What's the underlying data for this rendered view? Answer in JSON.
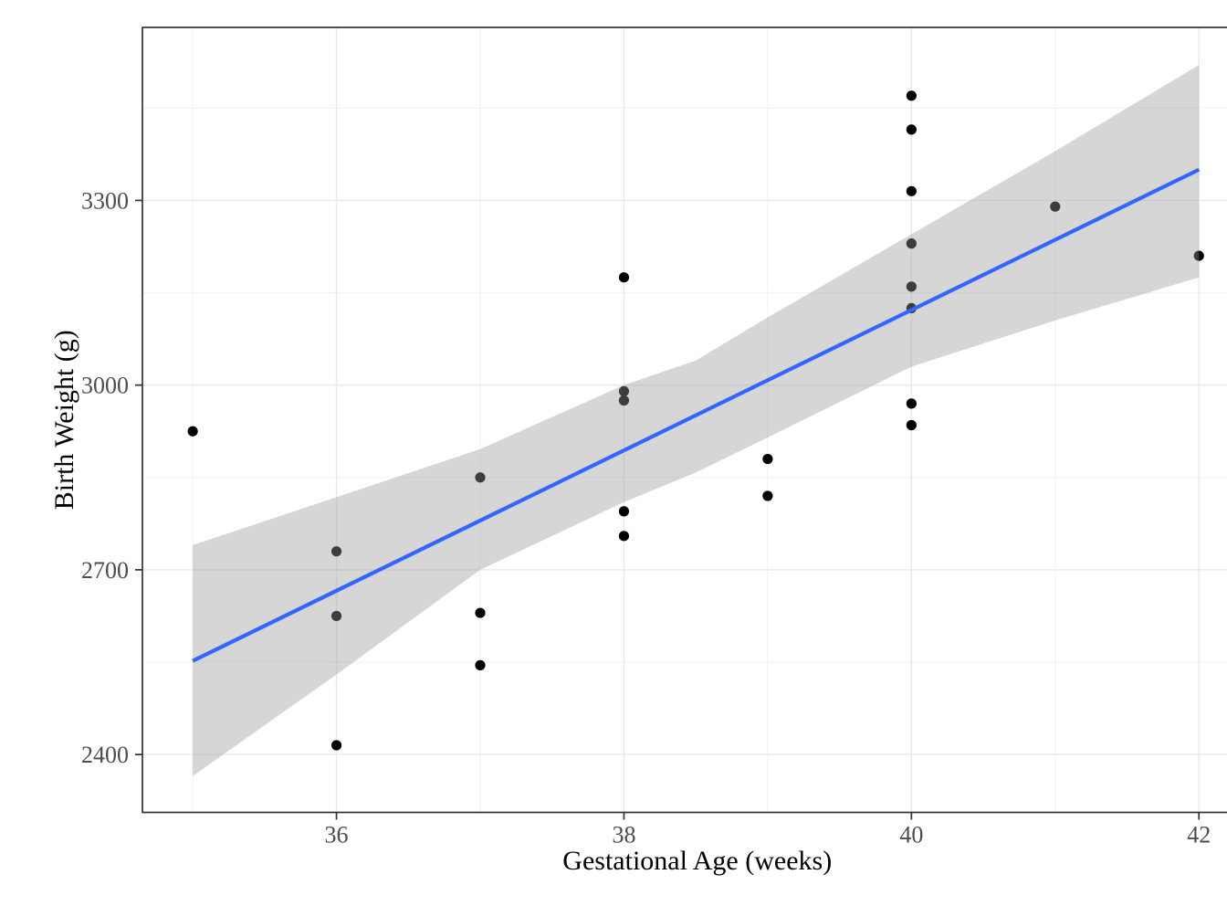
{
  "chart_data": {
    "type": "scatter",
    "title": "",
    "xlabel": "Gestational Age (weeks)",
    "ylabel": "Birth Weight (g)",
    "x_domain": [
      34.65,
      42.37
    ],
    "y_domain": [
      2306,
      3581
    ],
    "grid": true,
    "legend_position": "none",
    "x_ticks": [
      {
        "value": 36,
        "label": "36"
      },
      {
        "value": 38,
        "label": "38"
      },
      {
        "value": 40,
        "label": "40"
      },
      {
        "value": 42,
        "label": "42"
      }
    ],
    "y_ticks": [
      {
        "value": 2400,
        "label": "2400"
      },
      {
        "value": 2700,
        "label": "2700"
      },
      {
        "value": 3000,
        "label": "3000"
      },
      {
        "value": 3300,
        "label": "3300"
      }
    ],
    "x_minor_gridlines": [
      35,
      37,
      39,
      41
    ],
    "y_minor_gridlines": [
      2550,
      2850,
      3150,
      3450
    ],
    "points": [
      {
        "x": 35,
        "y": 2925
      },
      {
        "x": 36,
        "y": 2730
      },
      {
        "x": 36,
        "y": 2625
      },
      {
        "x": 36,
        "y": 2415
      },
      {
        "x": 37,
        "y": 2850
      },
      {
        "x": 37,
        "y": 2630
      },
      {
        "x": 37,
        "y": 2545
      },
      {
        "x": 38,
        "y": 3175
      },
      {
        "x": 38,
        "y": 2990
      },
      {
        "x": 38,
        "y": 2975
      },
      {
        "x": 38,
        "y": 2795
      },
      {
        "x": 38,
        "y": 2755
      },
      {
        "x": 39,
        "y": 2880
      },
      {
        "x": 39,
        "y": 2820
      },
      {
        "x": 40,
        "y": 3470
      },
      {
        "x": 40,
        "y": 3415
      },
      {
        "x": 40,
        "y": 3315
      },
      {
        "x": 40,
        "y": 3230
      },
      {
        "x": 40,
        "y": 3160
      },
      {
        "x": 40,
        "y": 3125
      },
      {
        "x": 40,
        "y": 2970
      },
      {
        "x": 40,
        "y": 2935
      },
      {
        "x": 41,
        "y": 3290
      },
      {
        "x": 42,
        "y": 3210
      }
    ],
    "regression_line": {
      "x1": 35,
      "y1": 2552,
      "x2": 42,
      "y2": 3350
    },
    "confidence_band": {
      "x": [
        35,
        36,
        37,
        38,
        38.5,
        39,
        40,
        41,
        42
      ],
      "upper": [
        2740,
        2818,
        2896,
        3000,
        3040,
        3110,
        3245,
        3380,
        3520
      ],
      "lower": [
        2365,
        2530,
        2700,
        2810,
        2858,
        2915,
        3030,
        3105,
        3175
      ]
    },
    "style": {
      "point_color": "#000000",
      "line_color": "#3366FF",
      "band_fill": "#999999",
      "band_opacity": 0.4,
      "grid_major_color": "#EBEBEB",
      "grid_minor_color": "#F4F4F4",
      "panel_border_color": "#333333",
      "tick_mark_color": "#333333",
      "tick_label_color": "#4D4D4D",
      "axis_title_color": "#000000",
      "background": "#FFFFFF"
    }
  }
}
